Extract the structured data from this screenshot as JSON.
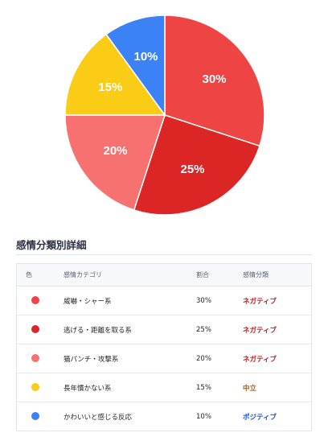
{
  "chart_data": {
    "type": "pie",
    "slices": [
      {
        "label": "威嚇・シャー系",
        "value": 30,
        "display": "30%",
        "color": "#ef4444"
      },
      {
        "label": "逃げる・距離を取る系",
        "value": 25,
        "display": "25%",
        "color": "#dc2626"
      },
      {
        "label": "猫パンチ・攻撃系",
        "value": 20,
        "display": "20%",
        "color": "#f87171"
      },
      {
        "label": "長年慣かない系",
        "value": 15,
        "display": "15%",
        "color": "#facc15"
      },
      {
        "label": "かわいいと感じる反応",
        "value": 10,
        "display": "10%",
        "color": "#3b82f6"
      }
    ],
    "start_angle_deg": 0,
    "direction": "clockwise",
    "legend": "none"
  },
  "details": {
    "title": "感情分類別詳細",
    "headers": {
      "color": "色",
      "category": "感情カテゴリ",
      "ratio": "割合",
      "classification": "感情分類"
    },
    "rows": [
      {
        "color": "#ef4444",
        "category": "威嚇・シャー系",
        "ratio": "30%",
        "classification": "ネガティブ",
        "class_color": "#b91c1c"
      },
      {
        "color": "#dc2626",
        "category": "逃げる・距離を取る系",
        "ratio": "25%",
        "classification": "ネガティブ",
        "class_color": "#b91c1c"
      },
      {
        "color": "#f87171",
        "category": "猫パンチ・攻撃系",
        "ratio": "20%",
        "classification": "ネガティブ",
        "class_color": "#b91c1c"
      },
      {
        "color": "#facc15",
        "category": "長年慣かない系",
        "ratio": "15%",
        "classification": "中立",
        "class_color": "#b45309"
      },
      {
        "color": "#3b82f6",
        "category": "かわいいと感じる反応",
        "ratio": "10%",
        "classification": "ポジティブ",
        "class_color": "#1d4ed8"
      }
    ]
  }
}
